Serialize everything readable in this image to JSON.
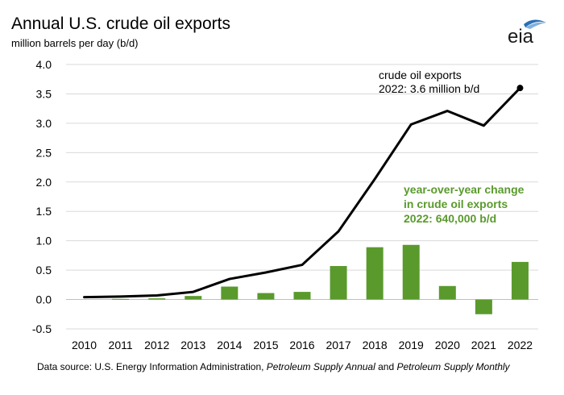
{
  "header": {
    "title": "Annual U.S. crude oil exports",
    "subtitle": "million barrels per day (b/d)",
    "logo_text": "eia"
  },
  "footer": {
    "prefix": "Data source: U.S. Energy Information Administration, ",
    "pub1": "Petroleum Supply Annual",
    "and": " and ",
    "pub2": "Petroleum Supply Monthly"
  },
  "colors": {
    "line": "#000000",
    "bar": "#5a9a2d",
    "bar_label": "#5a9a2d",
    "grid": "#d9d9d9",
    "zero_line": "#bfbfbf"
  },
  "chart_data": {
    "type": "bar+line",
    "categories": [
      "2010",
      "2011",
      "2012",
      "2013",
      "2014",
      "2015",
      "2016",
      "2017",
      "2018",
      "2019",
      "2020",
      "2021",
      "2022"
    ],
    "ylim": [
      -0.5,
      4.0
    ],
    "yticks": [
      -0.5,
      0.0,
      0.5,
      1.0,
      1.5,
      2.0,
      2.5,
      3.0,
      3.5,
      4.0
    ],
    "ytick_labels": [
      "-0.5",
      "0.0",
      "0.5",
      "1.0",
      "1.5",
      "2.0",
      "2.5",
      "3.0",
      "3.5",
      "4.0"
    ],
    "grid": "horizontal",
    "series": [
      {
        "name": "crude oil exports",
        "kind": "line",
        "values": [
          0.04,
          0.05,
          0.07,
          0.13,
          0.35,
          0.46,
          0.59,
          1.16,
          2.05,
          2.98,
          3.21,
          2.96,
          3.6
        ]
      },
      {
        "name": "year-over-year change in crude oil exports",
        "kind": "bar",
        "values": [
          null,
          0.01,
          0.02,
          0.06,
          0.22,
          0.11,
          0.13,
          0.57,
          0.89,
          0.93,
          0.23,
          -0.25,
          0.64
        ]
      }
    ],
    "annotations": {
      "line_label_1": "crude oil exports",
      "line_label_2": "2022: 3.6 million b/d",
      "bar_label_1": "year-over-year change",
      "bar_label_2": "in crude oil exports",
      "bar_label_3": "2022: 640,000 b/d"
    }
  }
}
